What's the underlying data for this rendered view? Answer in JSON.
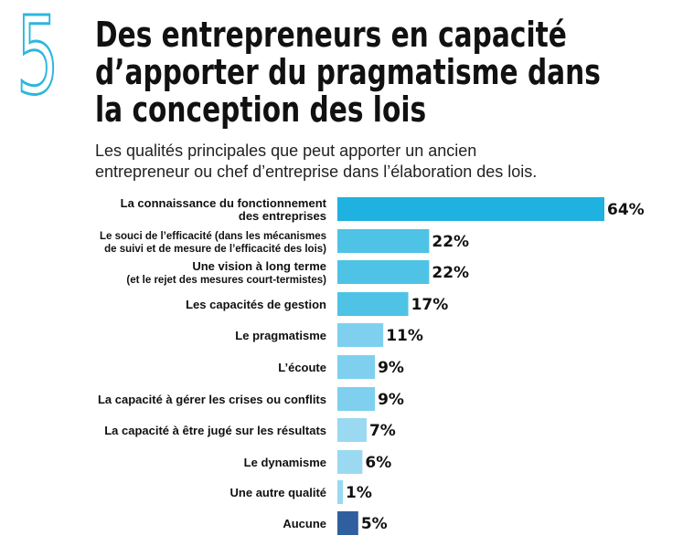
{
  "header": {
    "number": "5",
    "title_lines": [
      "Des entrepreneurs en capacité",
      "d’apporter du pragmatisme dans",
      "la conception des lois"
    ],
    "subtitle_lines": [
      "Les qualités principales que peut apporter un ancien",
      "entrepreneur ou chef d’entreprise dans l’élaboration des lois."
    ]
  },
  "colors": {
    "accent": "#2bb6e0",
    "bar_top": "#1fb1df",
    "bar_mid": "#4ec3e5",
    "bar_light": "#7fd0ee",
    "bar_lighter": "#9ad9f1",
    "bar_none": "#2f5f9e"
  },
  "chart_data": {
    "type": "bar",
    "orientation": "horizontal",
    "categories": [
      [
        "La connaissance du fonctionnement",
        "des entreprises"
      ],
      [
        "Le souci de l’efficacité (dans les mécanismes",
        "de suivi et de mesure de l’efficacité des lois)"
      ],
      [
        "Une vision à long terme",
        "(et le rejet des mesures court-termistes)"
      ],
      [
        "Les capacités de gestion"
      ],
      [
        "Le pragmatisme"
      ],
      [
        "L’écoute"
      ],
      [
        "La capacité à gérer les crises ou conflits"
      ],
      [
        "La capacité à être jugé sur les résultats"
      ],
      [
        "Le dynamisme"
      ],
      [
        "Une autre qualité"
      ],
      [
        "Aucune"
      ]
    ],
    "values": [
      64,
      22,
      22,
      17,
      11,
      9,
      9,
      7,
      6,
      1,
      5
    ],
    "value_labels": [
      "64%",
      "22%",
      "22%",
      "17%",
      "11%",
      "9%",
      "9%",
      "7%",
      "6%",
      "1%",
      "5%"
    ],
    "unit": "%",
    "xlim": [
      0,
      64
    ],
    "grid": false,
    "legend": "none"
  }
}
